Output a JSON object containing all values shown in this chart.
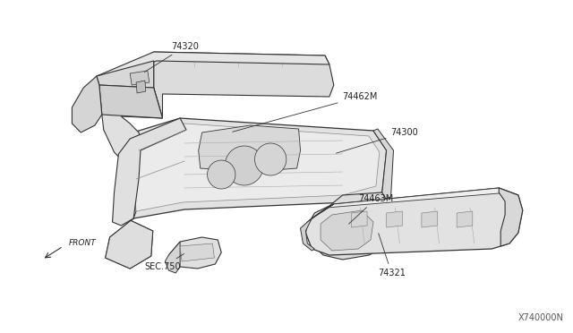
{
  "bg_color": "#ffffff",
  "fig_width": 6.4,
  "fig_height": 3.72,
  "dpi": 100,
  "line_color": "#333333",
  "fill_color": "#e8e8e8",
  "fill_light": "#f0f0f0",
  "fill_dark": "#d0d0d0",
  "text_color": "#222222",
  "diagram_id": "X740000N",
  "label_74320": "74320",
  "label_74462M": "74462M",
  "label_74300": "74300",
  "label_74463M": "74463M",
  "label_sec750": "SEC.750",
  "label_74321": "74321",
  "label_front": "FRONT"
}
